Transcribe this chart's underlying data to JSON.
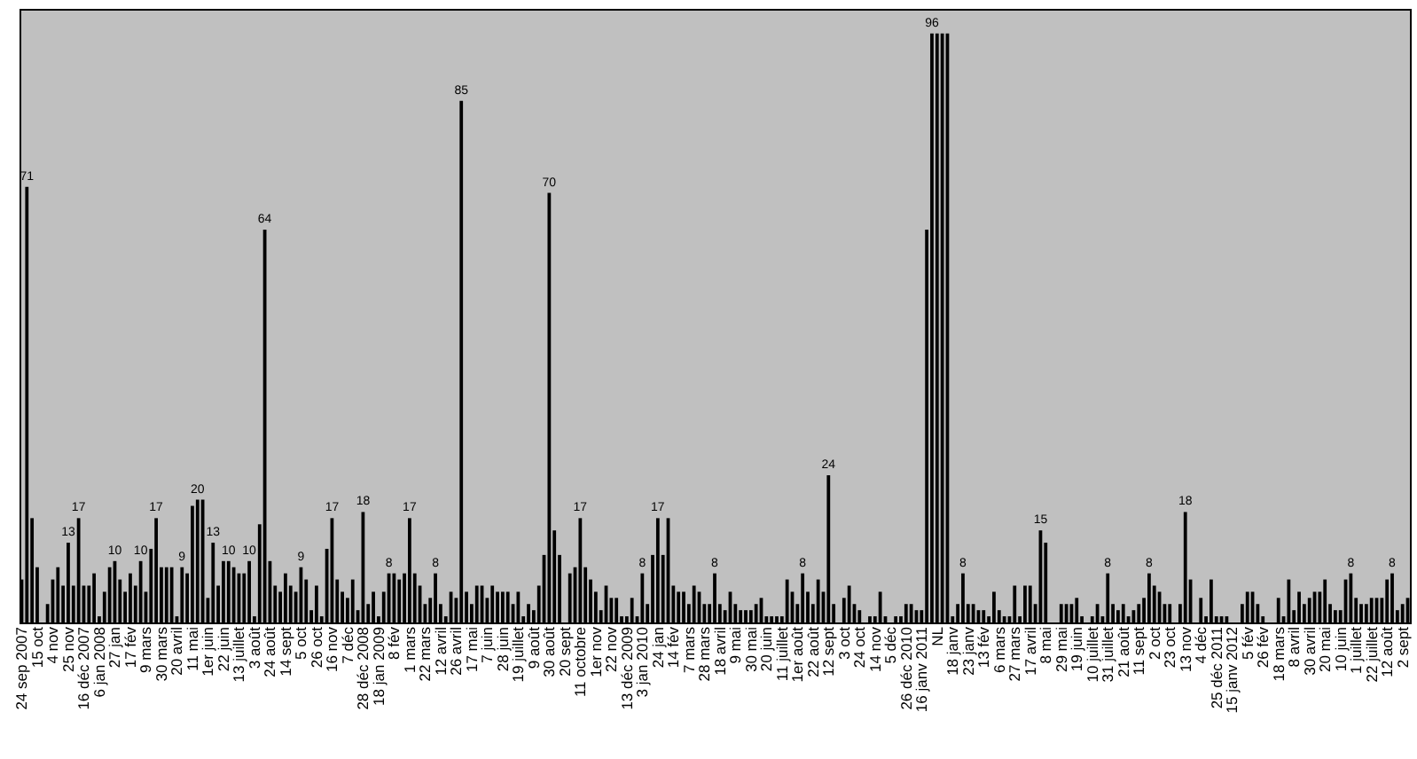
{
  "chart_data": {
    "type": "bar",
    "value_labels": [
      null,
      "71",
      null,
      null,
      null,
      null,
      null,
      null,
      null,
      "13",
      null,
      "17",
      null,
      null,
      null,
      null,
      null,
      null,
      "10",
      null,
      null,
      null,
      null,
      "10",
      null,
      null,
      "17",
      null,
      null,
      null,
      null,
      "9",
      null,
      null,
      "20",
      null,
      null,
      "13",
      null,
      null,
      "10",
      null,
      null,
      null,
      "10",
      null,
      null,
      "64",
      null,
      null,
      null,
      null,
      null,
      null,
      "9",
      null,
      null,
      null,
      null,
      null,
      "17",
      null,
      null,
      null,
      null,
      null,
      "18",
      null,
      null,
      null,
      null,
      "8",
      null,
      null,
      null,
      "17",
      null,
      null,
      null,
      null,
      "8",
      null,
      null,
      null,
      null,
      "85",
      null,
      null,
      null,
      null,
      null,
      null,
      null,
      null,
      null,
      null,
      null,
      null,
      null,
      null,
      null,
      null,
      "70",
      null,
      null,
      null,
      null,
      null,
      "17",
      null,
      null,
      null,
      null,
      null,
      null,
      null,
      null,
      null,
      null,
      null,
      "8",
      null,
      null,
      "17",
      null,
      null,
      null,
      null,
      null,
      null,
      null,
      null,
      null,
      null,
      "8",
      null,
      null,
      null,
      null,
      null,
      null,
      null,
      null,
      null,
      null,
      null,
      null,
      null,
      null,
      null,
      null,
      "8",
      null,
      null,
      null,
      null,
      "24",
      null,
      null,
      null,
      null,
      null,
      null,
      null,
      null,
      null,
      null,
      null,
      null,
      null,
      null,
      null,
      null,
      null,
      null,
      null,
      "96",
      null,
      null,
      null,
      null,
      null,
      "8",
      null,
      null,
      null,
      null,
      null,
      null,
      null,
      null,
      null,
      null,
      null,
      null,
      null,
      null,
      "15",
      null,
      null,
      null,
      null,
      null,
      null,
      null,
      null,
      null,
      null,
      null,
      null,
      "8",
      null,
      null,
      null,
      null,
      null,
      null,
      null,
      "8",
      null,
      null,
      null,
      null,
      null,
      null,
      "18",
      null,
      null,
      null,
      null,
      null,
      null,
      null,
      null,
      null,
      null,
      null,
      null,
      null,
      null,
      null,
      null,
      null,
      null,
      null,
      null,
      null,
      null,
      null,
      null,
      null,
      null,
      null,
      null,
      null,
      null,
      null,
      "8",
      null,
      null,
      null,
      null,
      null,
      null,
      null,
      "8",
      null,
      null,
      null
    ],
    "categories": [
      "24 sep 2007",
      null,
      null,
      "15 oct",
      null,
      null,
      "4 nov",
      null,
      null,
      "25 nov",
      null,
      null,
      "16 déc 2007",
      null,
      null,
      "6 jan 2008",
      null,
      null,
      "27 jan",
      null,
      null,
      "17 fév",
      null,
      null,
      "9 mars",
      null,
      null,
      "30 mars",
      null,
      null,
      "20 avril",
      null,
      null,
      "11 mai",
      null,
      null,
      "1er juin",
      null,
      null,
      "22 juin",
      null,
      null,
      "13 juillet",
      null,
      null,
      "3 août",
      null,
      null,
      "24 août",
      null,
      null,
      "14 sept",
      null,
      null,
      "5 oct",
      null,
      null,
      "26 oct",
      null,
      null,
      "16 nov",
      null,
      null,
      "7 déc",
      null,
      null,
      "28 déc 2008",
      null,
      null,
      "18 jan 2009",
      null,
      null,
      "8 fév",
      null,
      null,
      "1 mars",
      null,
      null,
      "22 mars",
      null,
      null,
      "12 avril",
      null,
      null,
      "26 avril",
      null,
      null,
      "17 mai",
      null,
      null,
      "7 juin",
      null,
      null,
      "28 juin",
      null,
      null,
      "19 juillet",
      null,
      null,
      "9 août",
      null,
      null,
      "30 août",
      null,
      null,
      "20 sept",
      null,
      null,
      "11 octobre",
      null,
      null,
      "1er nov",
      null,
      null,
      "22 nov",
      null,
      null,
      "13 déc 2009",
      null,
      null,
      "3 jan 2010",
      null,
      null,
      "24 jan",
      null,
      null,
      "14 fév",
      null,
      null,
      "7 mars",
      null,
      null,
      "28 mars",
      null,
      null,
      "18 avril",
      null,
      null,
      "9 mai",
      null,
      null,
      "30 mai",
      null,
      null,
      "20 juin",
      null,
      null,
      "11 juillet",
      null,
      null,
      "1er août",
      null,
      null,
      "22 août",
      null,
      null,
      "12 sept",
      null,
      null,
      "3 oct",
      null,
      null,
      "24 oct",
      null,
      null,
      "14 nov",
      null,
      null,
      "5 déc",
      null,
      null,
      "26 déc 2010",
      null,
      null,
      "16 janv 2011",
      null,
      null,
      "NL",
      null,
      null,
      "18 janv",
      null,
      null,
      "23 janv",
      null,
      null,
      "13 fév",
      null,
      null,
      "6 mars",
      null,
      null,
      "27 mars",
      null,
      null,
      "17 avril",
      null,
      null,
      "8 mai",
      null,
      null,
      "29 mai",
      null,
      null,
      "19 juin",
      null,
      null,
      "10 juillet",
      null,
      null,
      "31 juillet",
      null,
      null,
      "21 août",
      null,
      null,
      "11 sept",
      null,
      null,
      "2 oct",
      null,
      null,
      "23 oct",
      null,
      null,
      "13 nov",
      null,
      null,
      "4 déc",
      null,
      null,
      "25 déc 2011",
      null,
      null,
      "15 janv 2012",
      null,
      null,
      "5 fév",
      null,
      null,
      "26 fév",
      null,
      null,
      "18 mars",
      null,
      null,
      "8 avril",
      null,
      null,
      "30 avril",
      null,
      null,
      "20 mai",
      null,
      null,
      "10 juin",
      null,
      null,
      "1 juillet",
      null,
      null,
      "22 juillet",
      null,
      null,
      "12 août",
      null,
      null,
      "2 sept",
      null
    ],
    "values": [
      7,
      71,
      17,
      9,
      0,
      3,
      7,
      9,
      6,
      13,
      6,
      17,
      6,
      6,
      8,
      1,
      5,
      9,
      10,
      7,
      5,
      8,
      6,
      10,
      5,
      12,
      17,
      9,
      9,
      9,
      1,
      9,
      8,
      19,
      20,
      20,
      4,
      13,
      6,
      10,
      10,
      9,
      8,
      8,
      10,
      1,
      16,
      64,
      10,
      6,
      5,
      8,
      6,
      5,
      9,
      7,
      2,
      6,
      1,
      12,
      17,
      7,
      5,
      4,
      7,
      2,
      18,
      3,
      5,
      1,
      5,
      8,
      8,
      7,
      8,
      17,
      8,
      6,
      3,
      4,
      8,
      3,
      1,
      5,
      4,
      85,
      5,
      3,
      6,
      6,
      4,
      6,
      5,
      5,
      5,
      3,
      5,
      1,
      3,
      2,
      6,
      11,
      70,
      15,
      11,
      0,
      8,
      9,
      17,
      9,
      7,
      5,
      2,
      6,
      4,
      4,
      1,
      1,
      4,
      1,
      8,
      3,
      11,
      17,
      11,
      17,
      6,
      5,
      5,
      3,
      6,
      5,
      3,
      3,
      8,
      3,
      2,
      5,
      3,
      2,
      2,
      2,
      3,
      4,
      1,
      1,
      1,
      1,
      7,
      5,
      3,
      8,
      5,
      3,
      7,
      5,
      24,
      3,
      0,
      4,
      6,
      3,
      2,
      0,
      1,
      1,
      5,
      1,
      0,
      1,
      1,
      3,
      3,
      2,
      2,
      64,
      96,
      96,
      96,
      96,
      1,
      3,
      8,
      3,
      3,
      2,
      2,
      1,
      5,
      2,
      1,
      1,
      6,
      1,
      6,
      6,
      3,
      15,
      13,
      0,
      0,
      3,
      3,
      3,
      4,
      1,
      0,
      1,
      3,
      1,
      8,
      3,
      2,
      3,
      1,
      2,
      3,
      4,
      8,
      6,
      5,
      3,
      3,
      0,
      3,
      18,
      7,
      0,
      4,
      1,
      7,
      1,
      1,
      1,
      0,
      0,
      3,
      5,
      5,
      3,
      1,
      0,
      0,
      4,
      1,
      7,
      2,
      5,
      3,
      4,
      5,
      5,
      7,
      3,
      2,
      2,
      7,
      8,
      4,
      3,
      3,
      4,
      4,
      4,
      7,
      8,
      2,
      3,
      4
    ],
    "color": "#000000"
  }
}
